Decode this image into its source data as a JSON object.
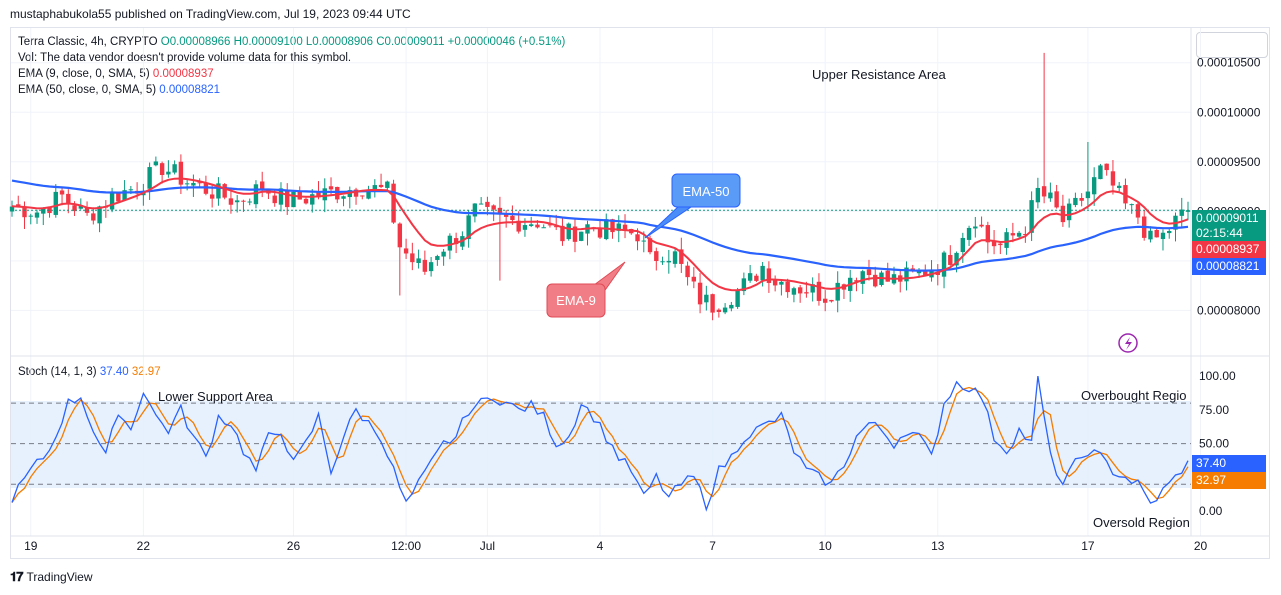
{
  "header": {
    "published": "mustaphabukola55 published on TradingView.com, Jul 19, 2023 09:44 UTC"
  },
  "legend": {
    "symbol": "Terra Classic, 4h, CRYPTO",
    "ohlc": "O0.00008966  H0.00009100  L0.00008906  C0.00009011  +0.00000046 (+0.51%)",
    "vol": "Vol: The data vendor doesn't provide volume data for this symbol.",
    "ema9_label": "EMA (9, close, 0, SMA, 5)",
    "ema9_value": "0.00008937",
    "ema50_label": "EMA (50, close, 0, SMA, 5)",
    "ema50_value": "0.00008821",
    "stoch_label": "Stoch (14, 1, 3)",
    "stoch_k": "37.40",
    "stoch_d": "32.97"
  },
  "annotations": {
    "upper_resistance": "Upper Resistance Area",
    "lower_support": "Lower Support Area",
    "overbought": "Overbought Regio",
    "oversold": "Oversold Region",
    "ema50_callout": "EMA-50",
    "ema9_callout": "EMA-9"
  },
  "price_tags": {
    "last": "0.00009011",
    "countdown": "02:15:44",
    "ema9": "0.00008937",
    "ema50": "0.00008821",
    "stoch_k": "37.40",
    "stoch_d": "32.97"
  },
  "footer": {
    "brand": "TradingView"
  },
  "colors": {
    "up": "#089981",
    "down": "#f23645",
    "ema9": "#f23645",
    "ema50": "#2962ff",
    "stoch_k": "#2962ff",
    "stoch_d": "#f57c00",
    "band": "#e3effd"
  },
  "chart_data": [
    {
      "type": "candlestick",
      "title": "Terra Classic, 4h, CRYPTO",
      "y_ticks": [
        "0.00008000",
        "0.00008500",
        "0.00009000",
        "0.00009500",
        "0.00010000",
        "0.00010500"
      ],
      "ylim": [
        7.65e-05,
        0.0001077
      ],
      "x_ticks": [
        {
          "label": "19",
          "index": 3
        },
        {
          "label": "22",
          "index": 21
        },
        {
          "label": "26",
          "index": 45
        },
        {
          "label": "12:00",
          "index": 63
        },
        {
          "label": "Jul",
          "index": 76
        },
        {
          "label": "4",
          "index": 94
        },
        {
          "label": "7",
          "index": 112
        },
        {
          "label": "10",
          "index": 130
        },
        {
          "label": "13",
          "index": 148
        },
        {
          "label": "17",
          "index": 172
        },
        {
          "label": "20",
          "index": 190
        }
      ],
      "close_anchors": [
        [
          0,
          9.05e-05
        ],
        [
          4,
          9e-05
        ],
        [
          8,
          9.15e-05
        ],
        [
          12,
          8.95e-05
        ],
        [
          16,
          9.15e-05
        ],
        [
          20,
          9.25e-05
        ],
        [
          24,
          9.45e-05
        ],
        [
          28,
          9.3e-05
        ],
        [
          32,
          9.2e-05
        ],
        [
          36,
          9.1e-05
        ],
        [
          40,
          9.25e-05
        ],
        [
          44,
          9.1e-05
        ],
        [
          48,
          9.15e-05
        ],
        [
          52,
          9.2e-05
        ],
        [
          56,
          9.25e-05
        ],
        [
          60,
          9.2e-05
        ],
        [
          62,
          8.65e-05
        ],
        [
          64,
          8.5e-05
        ],
        [
          66,
          8.4e-05
        ],
        [
          68,
          8.6e-05
        ],
        [
          72,
          8.8e-05
        ],
        [
          74,
          9e-05
        ],
        [
          76,
          8.95e-05
        ],
        [
          80,
          8.9e-05
        ],
        [
          84,
          8.9e-05
        ],
        [
          88,
          8.75e-05
        ],
        [
          92,
          8.85e-05
        ],
        [
          96,
          8.8e-05
        ],
        [
          100,
          8.78e-05
        ],
        [
          102,
          8.5e-05
        ],
        [
          104,
          8.6e-05
        ],
        [
          106,
          8.55e-05
        ],
        [
          108,
          8.3e-05
        ],
        [
          110,
          8.12e-05
        ],
        [
          112,
          8.05e-05
        ],
        [
          114,
          8.12e-05
        ],
        [
          116,
          8.2e-05
        ],
        [
          118,
          8.3e-05
        ],
        [
          120,
          8.45e-05
        ],
        [
          122,
          8.3e-05
        ],
        [
          124,
          8.28e-05
        ],
        [
          126,
          8.23e-05
        ],
        [
          128,
          8.2e-05
        ],
        [
          130,
          8.15e-05
        ],
        [
          132,
          8.25e-05
        ],
        [
          134,
          8.35e-05
        ],
        [
          136,
          8.4e-05
        ],
        [
          140,
          8.3e-05
        ],
        [
          144,
          8.35e-05
        ],
        [
          148,
          8.45e-05
        ],
        [
          150,
          8.55e-05
        ],
        [
          152,
          8.8e-05
        ],
        [
          154,
          8.95e-05
        ],
        [
          156,
          8.7e-05
        ],
        [
          158,
          8.65e-05
        ],
        [
          160,
          8.75e-05
        ],
        [
          162,
          8.85e-05
        ],
        [
          164,
          9.2e-05
        ],
        [
          166,
          9.1e-05
        ],
        [
          168,
          8.9e-05
        ],
        [
          170,
          9.05e-05
        ],
        [
          172,
          9.2e-05
        ],
        [
          174,
          9.4e-05
        ],
        [
          176,
          9.25e-05
        ],
        [
          178,
          9.05e-05
        ],
        [
          180,
          8.95e-05
        ],
        [
          182,
          8.7e-05
        ],
        [
          184,
          8.75e-05
        ],
        [
          186,
          8.9e-05
        ],
        [
          188,
          9.011e-05
        ]
      ],
      "spikes": [
        {
          "index": 165,
          "high": 0.000106
        },
        {
          "index": 62,
          "low": 8.15e-05
        },
        {
          "index": 78,
          "low": 8.3e-05
        },
        {
          "index": 112,
          "low": 7.9e-05
        },
        {
          "index": 172,
          "high": 9.7e-05
        }
      ],
      "ema9": "0.00008937",
      "ema50": "0.00008821",
      "last_close": "0.00009011"
    },
    {
      "type": "line",
      "title": "Stoch (14, 1, 3)",
      "y_ticks": [
        "0.00",
        "25.00",
        "50.00",
        "75.00",
        "100.00"
      ],
      "ylim": [
        -5,
        103
      ],
      "bands": {
        "upper": 80,
        "middle": 50,
        "lower": 20
      },
      "series": [
        {
          "name": "K",
          "last": 37.4,
          "anchors": [
            [
              0,
              10
            ],
            [
              3,
              30
            ],
            [
              6,
              45
            ],
            [
              9,
              80
            ],
            [
              11,
              85
            ],
            [
              13,
              60
            ],
            [
              15,
              40
            ],
            [
              17,
              75
            ],
            [
              19,
              60
            ],
            [
              21,
              90
            ],
            [
              23,
              70
            ],
            [
              25,
              60
            ],
            [
              27,
              75
            ],
            [
              29,
              55
            ],
            [
              31,
              40
            ],
            [
              33,
              70
            ],
            [
              35,
              65
            ],
            [
              37,
              45
            ],
            [
              39,
              30
            ],
            [
              41,
              55
            ],
            [
              43,
              60
            ],
            [
              45,
              35
            ],
            [
              47,
              50
            ],
            [
              49,
              70
            ],
            [
              51,
              30
            ],
            [
              53,
              55
            ],
            [
              55,
              75
            ],
            [
              57,
              65
            ],
            [
              59,
              55
            ],
            [
              61,
              30
            ],
            [
              63,
              5
            ],
            [
              65,
              20
            ],
            [
              67,
              35
            ],
            [
              69,
              50
            ],
            [
              71,
              55
            ],
            [
              73,
              75
            ],
            [
              75,
              80
            ],
            [
              77,
              85
            ],
            [
              79,
              80
            ],
            [
              81,
              75
            ],
            [
              83,
              78
            ],
            [
              85,
              70
            ],
            [
              87,
              50
            ],
            [
              89,
              55
            ],
            [
              91,
              80
            ],
            [
              93,
              70
            ],
            [
              95,
              55
            ],
            [
              97,
              40
            ],
            [
              99,
              30
            ],
            [
              101,
              10
            ],
            [
              103,
              25
            ],
            [
              105,
              10
            ],
            [
              107,
              20
            ],
            [
              109,
              25
            ],
            [
              111,
              5
            ],
            [
              113,
              30
            ],
            [
              115,
              40
            ],
            [
              117,
              55
            ],
            [
              119,
              60
            ],
            [
              121,
              65
            ],
            [
              123,
              70
            ],
            [
              125,
              45
            ],
            [
              127,
              30
            ],
            [
              129,
              25
            ],
            [
              131,
              20
            ],
            [
              133,
              35
            ],
            [
              135,
              55
            ],
            [
              137,
              65
            ],
            [
              139,
              60
            ],
            [
              141,
              50
            ],
            [
              143,
              60
            ],
            [
              145,
              55
            ],
            [
              147,
              40
            ],
            [
              149,
              80
            ],
            [
              151,
              95
            ],
            [
              153,
              92
            ],
            [
              155,
              85
            ],
            [
              157,
              55
            ],
            [
              159,
              45
            ],
            [
              161,
              60
            ],
            [
              163,
              50
            ],
            [
              164,
              100
            ],
            [
              166,
              40
            ],
            [
              168,
              20
            ],
            [
              170,
              35
            ],
            [
              172,
              45
            ],
            [
              174,
              40
            ],
            [
              176,
              30
            ],
            [
              178,
              25
            ],
            [
              180,
              20
            ],
            [
              182,
              5
            ],
            [
              184,
              15
            ],
            [
              186,
              25
            ],
            [
              188,
              37.4
            ]
          ]
        },
        {
          "name": "D",
          "last": 32.97
        }
      ]
    }
  ]
}
